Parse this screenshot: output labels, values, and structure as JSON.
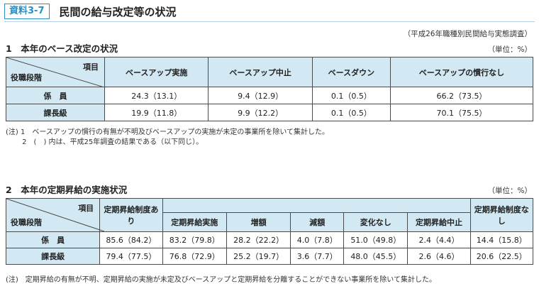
{
  "header": {
    "badge": "資料3-7",
    "title": "民間の給与改定等の状況"
  },
  "source": "（平成26年職種別民間給与実態調査）",
  "section1": {
    "title": "1　本年のベース改定の状況",
    "unit": "（単位：%）",
    "corner_item": "項目",
    "corner_rank": "役職段階",
    "columns": [
      "ベースアップ実施",
      "ベースアップ中止",
      "ベースダウン",
      "ベースアップの慣行なし"
    ],
    "rows": [
      {
        "label": "係　員",
        "values": [
          "24.3（13.1）",
          "9.4（12.9）",
          "0.1（0.5）",
          "66.2（73.5）"
        ]
      },
      {
        "label": "課長級",
        "values": [
          "19.9（11.8）",
          "9.9（12.2）",
          "0.1（0.5）",
          "70.1（75.5）"
        ]
      }
    ],
    "notes": [
      "(注) 1　ベースアップの慣行の有無が不明及びベースアップの実施が未定の事業所を除いて集計した。",
      "　　 2　(　) 内は、平成25年調査の結果である（以下同じ）。"
    ]
  },
  "section2": {
    "title": "2　本年の定期昇給の実施状況",
    "unit": "（単位：%）",
    "corner_item": "項目",
    "corner_rank": "役職段階",
    "col_ari": "定期昇給制度あり",
    "col_jisshi": "定期昇給実施",
    "col_zougaku": "増額",
    "col_gengaku": "減額",
    "col_henka": "変化なし",
    "col_chushi": "定期昇給中止",
    "col_nashi": "定期昇給制度なし",
    "rows": [
      {
        "label": "係　員",
        "values": [
          "85.6（84.2）",
          "83.2（79.8）",
          "28.2（22.2）",
          "4.0（7.8）",
          "51.0（49.8）",
          "2.4（4.4）",
          "14.4（15.8）"
        ]
      },
      {
        "label": "課長級",
        "values": [
          "79.4（77.5）",
          "76.8（72.9）",
          "25.2（19.7）",
          "3.6（7.7）",
          "48.0（45.5）",
          "2.6（4.6）",
          "20.6（22.5）"
        ]
      }
    ],
    "note": "(注)　定期昇給の有無が不明、定期昇給の実施が未定及びベースアップと定期昇給を分離することができない事業所を除いて集計した。"
  }
}
